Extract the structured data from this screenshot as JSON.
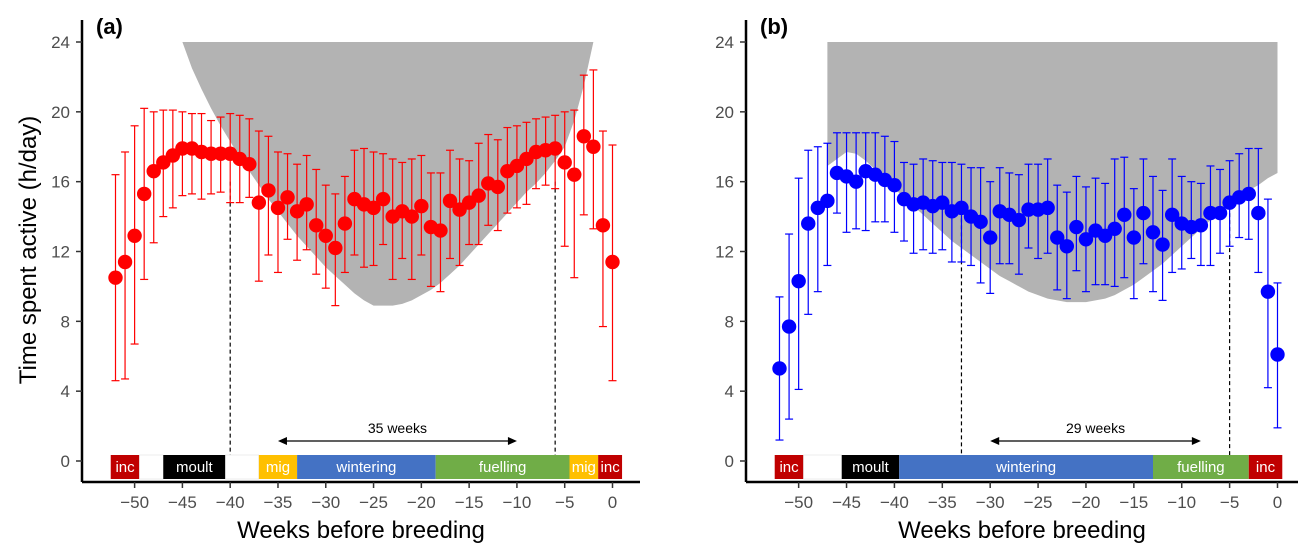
{
  "chart_data": [
    {
      "type": "scatter",
      "panel_label": "(a)",
      "xlabel": "Weeks before breeding",
      "ylabel": "Time spent active (h/day)",
      "xlim": [
        -54,
        1.5
      ],
      "ylim": [
        -1,
        25
      ],
      "xticks": [
        -50,
        -45,
        -40,
        -35,
        -30,
        -25,
        -20,
        -15,
        -10,
        -5,
        0
      ],
      "yticks": [
        0,
        4,
        8,
        12,
        16,
        20,
        24
      ],
      "colors": {
        "points": "#ff0000",
        "shade": "#b3b3b3"
      },
      "series": [
        {
          "x": [
            -52,
            -51,
            -50,
            -49,
            -48,
            -47,
            -46,
            -45,
            -44,
            -43,
            -42,
            -41,
            -40,
            -39,
            -38,
            -37,
            -36,
            -35,
            -34,
            -33,
            -32,
            -31,
            -30,
            -29,
            -28,
            -27,
            -26,
            -25,
            -24,
            -23,
            -22,
            -21,
            -20,
            -19,
            -18,
            -17,
            -16,
            -15,
            -14,
            -13,
            -12,
            -11,
            -10,
            -9,
            -8,
            -7,
            -6,
            -5,
            -4,
            -3,
            -2,
            -1,
            0
          ],
          "y": [
            10.5,
            11.4,
            12.9,
            15.3,
            16.6,
            17.1,
            17.5,
            17.9,
            17.9,
            17.7,
            17.6,
            17.6,
            17.6,
            17.3,
            17.0,
            14.8,
            15.5,
            14.5,
            15.1,
            14.3,
            14.7,
            13.5,
            12.9,
            12.2,
            13.6,
            15.0,
            14.7,
            14.5,
            15.0,
            14.0,
            14.3,
            14.0,
            14.6,
            13.4,
            13.2,
            14.9,
            14.4,
            14.8,
            15.2,
            15.9,
            15.7,
            16.6,
            16.9,
            17.3,
            17.7,
            17.8,
            17.9,
            17.1,
            16.4,
            18.6,
            18.0,
            13.5,
            11.4
          ],
          "error_low": [
            4.6,
            4.7,
            6.7,
            10.4,
            12.5,
            14.0,
            14.5,
            15.2,
            15.3,
            15.0,
            15.3,
            15.4,
            14.8,
            14.8,
            15.1,
            10.3,
            11.8,
            10.8,
            12.7,
            11.5,
            12.1,
            10.7,
            9.9,
            8.9,
            10.8,
            11.8,
            11.1,
            11.2,
            12.4,
            10.4,
            11.6,
            10.4,
            11.8,
            10.0,
            9.7,
            11.6,
            11.2,
            12.4,
            12.4,
            13.5,
            13.2,
            14.2,
            14.5,
            14.7,
            15.6,
            15.8,
            15.6,
            12.3,
            10.5,
            14.1,
            13.3,
            7.7,
            4.6
          ],
          "error_high": [
            16.4,
            17.7,
            19.2,
            20.2,
            20.0,
            20.1,
            20.1,
            20.0,
            19.9,
            19.9,
            19.5,
            19.7,
            19.9,
            19.8,
            19.6,
            18.9,
            18.6,
            17.7,
            17.6,
            17.0,
            17.5,
            16.7,
            15.8,
            15.3,
            16.3,
            17.8,
            17.9,
            17.7,
            17.6,
            17.3,
            17.1,
            17.3,
            17.5,
            16.5,
            16.5,
            17.8,
            17.3,
            17.2,
            18.2,
            18.7,
            18.4,
            19.1,
            19.2,
            19.4,
            19.6,
            19.7,
            19.8,
            20.0,
            20.1,
            22.1,
            22.4,
            18.9,
            18.1
          ]
        }
      ],
      "shaded_region_upper_bound": {
        "x": [
          -41,
          -40,
          -39,
          -38,
          -37,
          -36,
          -35,
          -34,
          -33,
          -32,
          -31,
          -30,
          -29,
          -28,
          -27,
          -26,
          -25,
          -24,
          -23,
          -22,
          -21,
          -20,
          -19,
          -18,
          -17,
          -16,
          -15,
          -14,
          -13,
          -12,
          -11,
          -10,
          -9,
          -8,
          -7,
          -6
        ],
        "y": [
          15.6,
          15.0,
          14.5,
          14.0,
          13.5,
          13.0,
          12.4,
          11.9,
          11.4,
          11.0,
          10.6,
          10.2,
          9.8,
          9.5,
          9.3,
          9.1,
          9.0,
          9.0,
          9.1,
          9.3,
          9.5,
          9.8,
          10.2,
          10.6,
          11.0,
          11.4,
          11.8,
          12.3,
          12.8,
          13.4,
          14.0,
          14.7,
          15.4,
          16.0,
          16.7,
          17.4
        ]
      },
      "shaded_region_lower_bound": {
        "x": [
          -45,
          -44,
          -43,
          -42,
          -41,
          -40,
          -39,
          -38,
          -37,
          -36,
          -35,
          -34,
          -33,
          -32,
          -31,
          -30,
          -29,
          -28,
          -27,
          -26,
          -25,
          -24,
          -23,
          -22,
          -21,
          -20,
          -19,
          -18,
          -17,
          -16,
          -15,
          -14,
          -13,
          -12,
          -11,
          -10,
          -9,
          -8,
          -7,
          -6,
          -5,
          -4,
          -3,
          -2
        ],
        "y": [
          24,
          22.5,
          21.3,
          20.2,
          19.2,
          18.3,
          17.4,
          16.6,
          15.8,
          15.0,
          14.3,
          13.6,
          12.9,
          12.3,
          11.7,
          11.1,
          10.6,
          10.1,
          9.6,
          9.2,
          8.9,
          8.9,
          8.9,
          9.0,
          9.2,
          9.5,
          9.8,
          10.2,
          10.7,
          11.2,
          11.8,
          12.4,
          13.0,
          13.6,
          14.2,
          14.8,
          15.4,
          15.9,
          16.5,
          17.2,
          18.0,
          19.5,
          21.5,
          24
        ]
      },
      "vlines": [
        -40,
        -6
      ],
      "interval": {
        "from": -35,
        "to": -10,
        "label": "35 weeks"
      },
      "phases": [
        {
          "label": "inc",
          "start": -52.5,
          "end": -49.5,
          "color": "#c00000",
          "text_color": "#ffffff"
        },
        {
          "label": "",
          "start": -49.5,
          "end": -47,
          "color": "#ffffff",
          "text_color": "#000000"
        },
        {
          "label": "moult",
          "start": -47,
          "end": -40.5,
          "color": "#000000",
          "text_color": "#ffffff"
        },
        {
          "label": "",
          "start": -40.5,
          "end": -37,
          "color": "#ffffff",
          "text_color": "#000000"
        },
        {
          "label": "mig",
          "start": -37,
          "end": -33,
          "color": "#ffc000",
          "text_color": "#ffffff"
        },
        {
          "label": "wintering",
          "start": -33,
          "end": -18.5,
          "color": "#4472c4",
          "text_color": "#ffffff"
        },
        {
          "label": "fuelling",
          "start": -18.5,
          "end": -4.5,
          "color": "#70ad47",
          "text_color": "#ffffff"
        },
        {
          "label": "mig",
          "start": -4.5,
          "end": -1.5,
          "color": "#ffc000",
          "text_color": "#ffffff"
        },
        {
          "label": "inc",
          "start": -1.5,
          "end": 1,
          "color": "#c00000",
          "text_color": "#ffffff"
        }
      ]
    },
    {
      "type": "scatter",
      "panel_label": "(b)",
      "xlabel": "Weeks before breeding",
      "ylabel": "",
      "xlim": [
        -54,
        1.5
      ],
      "ylim": [
        -1,
        25
      ],
      "xticks": [
        -50,
        -45,
        -40,
        -35,
        -30,
        -25,
        -20,
        -15,
        -10,
        -5,
        0
      ],
      "yticks": [
        0,
        4,
        8,
        12,
        16,
        20,
        24
      ],
      "colors": {
        "points": "#0000ff",
        "shade": "#b3b3b3"
      },
      "series": [
        {
          "x": [
            -52,
            -51,
            -50,
            -49,
            -48,
            -47,
            -46,
            -45,
            -44,
            -43,
            -42,
            -41,
            -40,
            -39,
            -38,
            -37,
            -36,
            -35,
            -34,
            -33,
            -32,
            -31,
            -30,
            -29,
            -28,
            -27,
            -26,
            -25,
            -24,
            -23,
            -22,
            -21,
            -20,
            -19,
            -18,
            -17,
            -16,
            -15,
            -14,
            -13,
            -12,
            -11,
            -10,
            -9,
            -8,
            -7,
            -6,
            -5,
            -4,
            -3,
            -2,
            -1,
            0
          ],
          "y": [
            5.3,
            7.7,
            10.3,
            13.6,
            14.5,
            14.9,
            16.5,
            16.3,
            16.0,
            16.6,
            16.4,
            16.1,
            15.8,
            15.0,
            14.7,
            14.8,
            14.6,
            14.8,
            14.3,
            14.5,
            14.0,
            13.7,
            12.8,
            14.3,
            14.1,
            13.8,
            14.4,
            14.4,
            14.5,
            12.8,
            12.3,
            13.4,
            12.7,
            13.2,
            12.9,
            13.3,
            14.1,
            12.8,
            14.2,
            13.1,
            12.4,
            14.1,
            13.6,
            13.4,
            13.5,
            14.2,
            14.2,
            14.8,
            15.1,
            15.3,
            14.2,
            9.7,
            6.1
          ],
          "error_low": [
            1.2,
            2.4,
            4.1,
            8.4,
            9.7,
            11.2,
            14.2,
            13.1,
            13.3,
            13.2,
            13.7,
            13.7,
            13.1,
            12.6,
            11.9,
            12.1,
            11.9,
            12.1,
            11.4,
            11.4,
            11.2,
            10.2,
            9.6,
            11.3,
            11.3,
            10.7,
            12.2,
            11.6,
            11.9,
            9.8,
            9.3,
            10.9,
            9.7,
            10.1,
            10.1,
            10.0,
            10.5,
            9.3,
            11.3,
            9.7,
            9.2,
            10.8,
            11.0,
            11.6,
            11.2,
            11.2,
            11.9,
            12.3,
            12.8,
            12.7,
            10.8,
            4.2,
            1.9
          ],
          "error_high": [
            9.4,
            13.0,
            16.2,
            17.8,
            18.0,
            18.2,
            18.8,
            18.8,
            18.8,
            18.8,
            18.8,
            18.6,
            18.3,
            17.1,
            17.0,
            17.3,
            17.2,
            17.1,
            17.1,
            17.0,
            16.8,
            16.8,
            16.0,
            16.8,
            16.5,
            16.4,
            17.0,
            17.0,
            17.3,
            15.8,
            15.4,
            16.3,
            15.7,
            16.2,
            15.9,
            17.3,
            17.4,
            15.6,
            17.3,
            16.3,
            15.5,
            17.3,
            16.3,
            16.0,
            15.9,
            16.9,
            16.7,
            17.2,
            17.6,
            17.9,
            17.9,
            15.0,
            10.2
          ]
        }
      ],
      "shaded_region_lower_bound": {
        "x": [
          -47,
          -46,
          -45,
          -44,
          -43,
          -42,
          -41,
          -40,
          -39,
          -38,
          -37,
          -36,
          -35,
          -34,
          -33,
          -32,
          -31,
          -30,
          -29,
          -28,
          -27,
          -26,
          -25,
          -24,
          -23,
          -22,
          -21,
          -20,
          -19,
          -18,
          -17,
          -16,
          -15,
          -14,
          -13,
          -12,
          -11,
          -10,
          -9,
          -8,
          -7,
          -6,
          -5,
          -4,
          -3,
          -2,
          -1,
          0
        ],
        "y": [
          16.9,
          17.3,
          17.7,
          17.6,
          17.2,
          16.7,
          16.1,
          15.6,
          15.1,
          14.6,
          14.1,
          13.6,
          13.1,
          12.6,
          12.2,
          11.8,
          11.4,
          11.0,
          10.6,
          10.3,
          10.0,
          9.7,
          9.5,
          9.3,
          9.2,
          9.1,
          9.1,
          9.1,
          9.2,
          9.3,
          9.5,
          9.8,
          10.1,
          10.5,
          10.9,
          11.3,
          11.8,
          12.3,
          12.8,
          13.3,
          13.8,
          14.3,
          14.7,
          15.1,
          15.5,
          15.8,
          16.2,
          16.5
        ]
      },
      "vlines": [
        -33,
        -5
      ],
      "interval": {
        "from": -30,
        "to": -8,
        "label": "29 weeks"
      },
      "phases": [
        {
          "label": "inc",
          "start": -52.5,
          "end": -49.5,
          "color": "#c00000",
          "text_color": "#ffffff"
        },
        {
          "label": "",
          "start": -49.5,
          "end": -45.5,
          "color": "#ffffff",
          "text_color": "#000000"
        },
        {
          "label": "moult",
          "start": -45.5,
          "end": -39.5,
          "color": "#000000",
          "text_color": "#ffffff"
        },
        {
          "label": "wintering",
          "start": -39.5,
          "end": -13,
          "color": "#4472c4",
          "text_color": "#ffffff"
        },
        {
          "label": "fuelling",
          "start": -13,
          "end": -3,
          "color": "#70ad47",
          "text_color": "#ffffff"
        },
        {
          "label": "inc",
          "start": -3,
          "end": 0.5,
          "color": "#c00000",
          "text_color": "#ffffff"
        }
      ]
    }
  ]
}
